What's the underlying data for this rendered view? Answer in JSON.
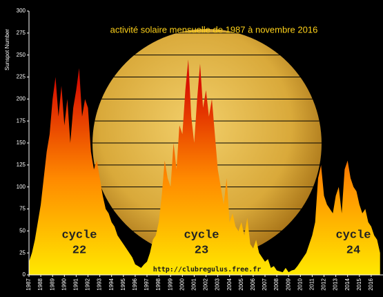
{
  "chart_data": {
    "type": "area",
    "title": "activité solaire mensuelle de 1987 à novembre  2016",
    "y_label": "Sunspot Number",
    "source": "http://clubregulus.free.fr",
    "annotations": [
      {
        "lines": [
          "cycle",
          "22"
        ]
      },
      {
        "lines": [
          "cycle",
          "23"
        ]
      },
      {
        "lines": [
          "cycle",
          "24"
        ]
      }
    ],
    "fill_gradient": [
      "#d81000",
      "#ff8a00",
      "#ffe800"
    ],
    "background": "#000000",
    "grid": true,
    "xlim": [
      1987,
      2017
    ],
    "ylim": [
      0,
      300
    ],
    "xticks": [
      1987,
      1988,
      1989,
      1990,
      1991,
      1992,
      1993,
      1994,
      1995,
      1996,
      1997,
      1998,
      1999,
      2000,
      2001,
      2002,
      2003,
      2004,
      2005,
      2006,
      2007,
      2008,
      2009,
      2010,
      2011,
      2012,
      2013,
      2014,
      2015,
      2016
    ],
    "yticks": [
      0,
      25,
      50,
      75,
      100,
      125,
      150,
      175,
      200,
      225,
      250,
      275,
      300
    ],
    "x": [
      1987,
      1987.25,
      1987.5,
      1987.75,
      1988,
      1988.25,
      1988.5,
      1988.75,
      1989,
      1989.25,
      1989.5,
      1989.75,
      1990,
      1990.25,
      1990.5,
      1990.75,
      1991,
      1991.25,
      1991.5,
      1991.75,
      1992,
      1992.25,
      1992.5,
      1992.75,
      1993,
      1993.25,
      1993.5,
      1993.75,
      1994,
      1994.25,
      1994.5,
      1994.75,
      1995,
      1995.25,
      1995.5,
      1995.75,
      1996,
      1996.25,
      1996.5,
      1996.75,
      1997,
      1997.25,
      1997.5,
      1997.75,
      1998,
      1998.25,
      1998.5,
      1998.75,
      1999,
      1999.25,
      1999.5,
      1999.75,
      2000,
      2000.25,
      2000.5,
      2000.75,
      2001,
      2001.25,
      2001.5,
      2001.75,
      2002,
      2002.25,
      2002.5,
      2002.75,
      2003,
      2003.25,
      2003.5,
      2003.75,
      2004,
      2004.25,
      2004.5,
      2004.75,
      2005,
      2005.25,
      2005.5,
      2005.75,
      2006,
      2006.25,
      2006.5,
      2006.75,
      2007,
      2007.25,
      2007.5,
      2007.75,
      2008,
      2008.25,
      2008.5,
      2008.75,
      2009,
      2009.25,
      2009.5,
      2009.75,
      2010,
      2010.25,
      2010.5,
      2010.75,
      2011,
      2011.25,
      2011.5,
      2011.75,
      2012,
      2012.25,
      2012.5,
      2012.75,
      2013,
      2013.25,
      2013.5,
      2013.75,
      2014,
      2014.25,
      2014.5,
      2014.75,
      2015,
      2015.25,
      2015.5,
      2015.75,
      2016,
      2016.25,
      2016.5,
      2016.75
    ],
    "values": [
      15,
      25,
      40,
      60,
      80,
      110,
      140,
      160,
      200,
      225,
      180,
      215,
      170,
      200,
      150,
      190,
      210,
      235,
      180,
      200,
      190,
      140,
      120,
      130,
      110,
      90,
      75,
      70,
      60,
      55,
      45,
      40,
      35,
      30,
      25,
      20,
      12,
      10,
      8,
      12,
      15,
      25,
      40,
      45,
      60,
      90,
      130,
      110,
      100,
      150,
      120,
      170,
      160,
      210,
      245,
      180,
      150,
      200,
      240,
      190,
      210,
      180,
      200,
      160,
      120,
      100,
      80,
      110,
      60,
      70,
      55,
      50,
      60,
      45,
      65,
      35,
      30,
      40,
      25,
      20,
      15,
      18,
      8,
      10,
      5,
      4,
      3,
      8,
      3,
      5,
      6,
      10,
      15,
      20,
      25,
      35,
      45,
      60,
      110,
      125,
      90,
      80,
      75,
      70,
      90,
      100,
      70,
      120,
      130,
      110,
      100,
      95,
      80,
      70,
      75,
      60,
      55,
      45,
      40,
      25
    ]
  }
}
